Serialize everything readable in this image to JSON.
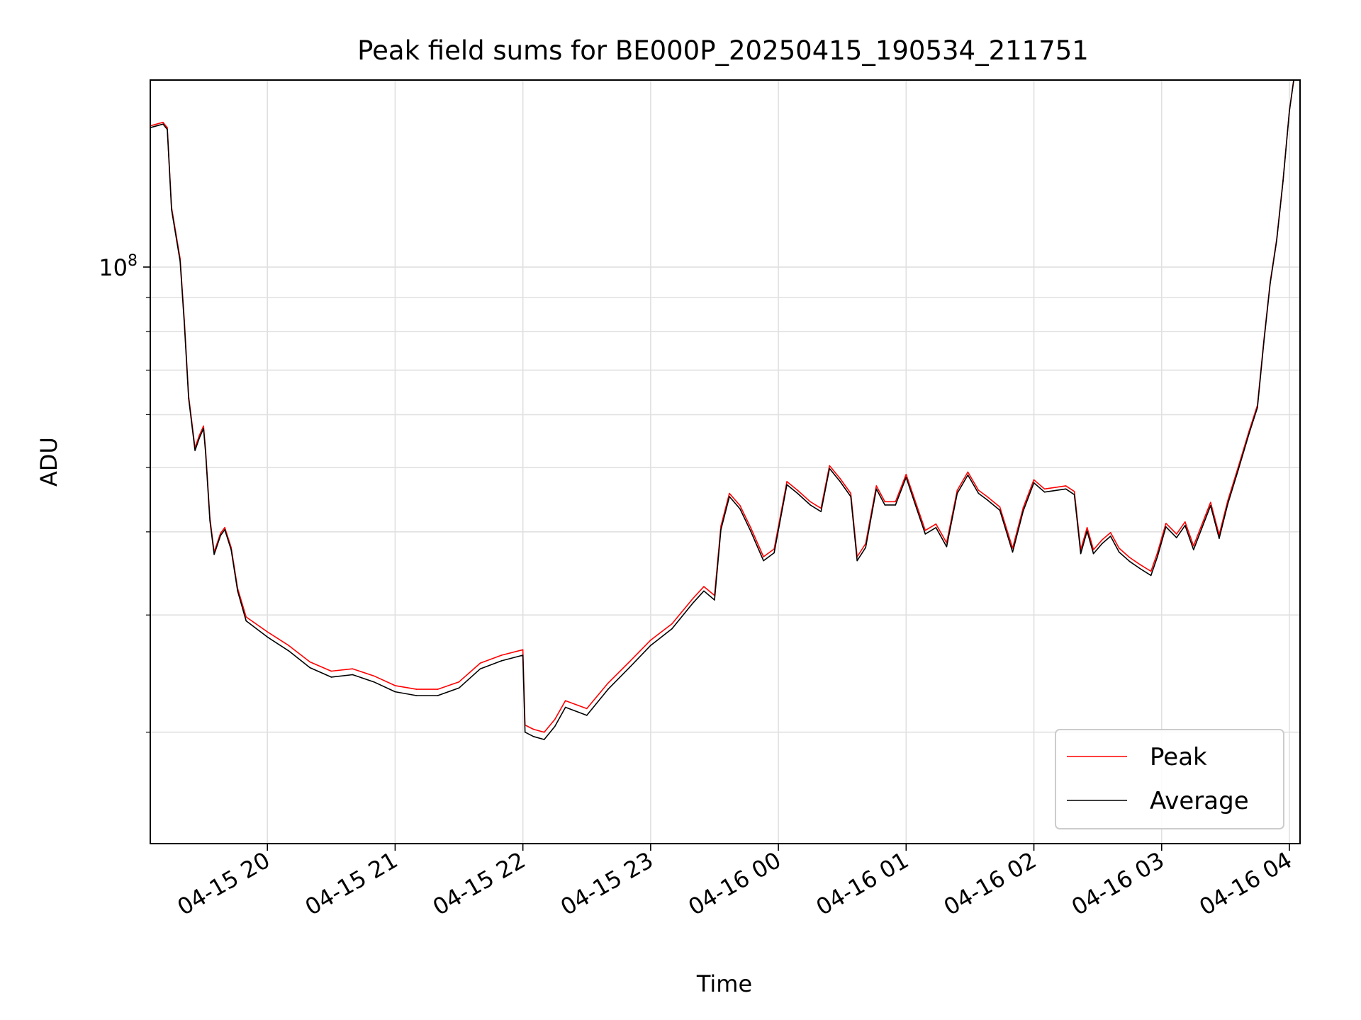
{
  "chart_data": {
    "type": "line",
    "title": "Peak field sums for BE000P_20250415_190534_211751",
    "xlabel": "Time",
    "ylabel": "ADU",
    "yscale": "log",
    "ylim": [
      13600000,
      191000000
    ],
    "xlim": [
      "2025-04-15 19:05",
      "2025-04-16 04:05"
    ],
    "grid": true,
    "legend_position": "lower right",
    "x_ticks": [
      {
        "t": "2025-04-15 20:00",
        "label": "04-15 20"
      },
      {
        "t": "2025-04-15 21:00",
        "label": "04-15 21"
      },
      {
        "t": "2025-04-15 22:00",
        "label": "04-15 22"
      },
      {
        "t": "2025-04-15 23:00",
        "label": "04-15 23"
      },
      {
        "t": "2025-04-16 00:00",
        "label": "04-16 00"
      },
      {
        "t": "2025-04-16 01:00",
        "label": "04-16 01"
      },
      {
        "t": "2025-04-16 02:00",
        "label": "04-16 02"
      },
      {
        "t": "2025-04-16 03:00",
        "label": "04-16 03"
      },
      {
        "t": "2025-04-16 04:00",
        "label": "04-16 04"
      }
    ],
    "y_major_ticks": [
      {
        "value": 100000000,
        "label": "10",
        "exp": "8"
      }
    ],
    "y_minor_ticks": [
      20000000,
      30000000,
      40000000,
      50000000,
      60000000,
      70000000,
      80000000,
      90000000,
      200000000
    ],
    "series": [
      {
        "name": "Peak",
        "color": "#ff0000",
        "points": [
          [
            "2025-04-15 19:05",
            163000000
          ],
          [
            "2025-04-15 19:08",
            164000000
          ],
          [
            "2025-04-15 19:11",
            165000000
          ],
          [
            "2025-04-15 19:13",
            162000000
          ],
          [
            "2025-04-15 19:15",
            123000000
          ],
          [
            "2025-04-15 19:19",
            103000000
          ],
          [
            "2025-04-15 19:21",
            83000000
          ],
          [
            "2025-04-15 19:23",
            64000000
          ],
          [
            "2025-04-15 19:26",
            53500000
          ],
          [
            "2025-04-15 19:28",
            55800000
          ],
          [
            "2025-04-15 19:30",
            57700000
          ],
          [
            "2025-04-15 19:31",
            53000000
          ],
          [
            "2025-04-15 19:33",
            42000000
          ],
          [
            "2025-04-15 19:35",
            37300000
          ],
          [
            "2025-04-15 19:38",
            39800000
          ],
          [
            "2025-04-15 19:40",
            40600000
          ],
          [
            "2025-04-15 19:43",
            37900000
          ],
          [
            "2025-04-15 19:46",
            32900000
          ],
          [
            "2025-04-15 19:50",
            29800000
          ],
          [
            "2025-04-15 20:00",
            28300000
          ],
          [
            "2025-04-15 20:10",
            27000000
          ],
          [
            "2025-04-15 20:20",
            25500000
          ],
          [
            "2025-04-15 20:30",
            24700000
          ],
          [
            "2025-04-15 20:40",
            24900000
          ],
          [
            "2025-04-15 20:50",
            24300000
          ],
          [
            "2025-04-15 21:00",
            23500000
          ],
          [
            "2025-04-15 21:10",
            23200000
          ],
          [
            "2025-04-15 21:20",
            23200000
          ],
          [
            "2025-04-15 21:30",
            23800000
          ],
          [
            "2025-04-15 21:40",
            25400000
          ],
          [
            "2025-04-15 21:50",
            26100000
          ],
          [
            "2025-04-15 22:00",
            26600000
          ],
          [
            "2025-04-15 22:01",
            20500000
          ],
          [
            "2025-04-15 22:05",
            20200000
          ],
          [
            "2025-04-15 22:10",
            20000000
          ],
          [
            "2025-04-15 22:15",
            20900000
          ],
          [
            "2025-04-15 22:20",
            22300000
          ],
          [
            "2025-04-15 22:30",
            21700000
          ],
          [
            "2025-04-15 22:40",
            23700000
          ],
          [
            "2025-04-15 22:50",
            25500000
          ],
          [
            "2025-04-15 23:00",
            27500000
          ],
          [
            "2025-04-15 23:10",
            29100000
          ],
          [
            "2025-04-15 23:20",
            31800000
          ],
          [
            "2025-04-15 23:25",
            33100000
          ],
          [
            "2025-04-15 23:30",
            32100000
          ],
          [
            "2025-04-15 23:33",
            40800000
          ],
          [
            "2025-04-15 23:37",
            45700000
          ],
          [
            "2025-04-15 23:42",
            43800000
          ],
          [
            "2025-04-15 23:47",
            40600000
          ],
          [
            "2025-04-15 23:53",
            36700000
          ],
          [
            "2025-04-15 23:58",
            37700000
          ],
          [
            "2025-04-16 00:04",
            47600000
          ],
          [
            "2025-04-16 00:09",
            46200000
          ],
          [
            "2025-04-16 00:15",
            44400000
          ],
          [
            "2025-04-16 00:20",
            43400000
          ],
          [
            "2025-04-16 00:24",
            50300000
          ],
          [
            "2025-04-16 00:29",
            48100000
          ],
          [
            "2025-04-16 00:34",
            45700000
          ],
          [
            "2025-04-16 00:37",
            36700000
          ],
          [
            "2025-04-16 00:41",
            38400000
          ],
          [
            "2025-04-16 00:46",
            46900000
          ],
          [
            "2025-04-16 00:50",
            44400000
          ],
          [
            "2025-04-16 00:55",
            44400000
          ],
          [
            "2025-04-16 01:00",
            48800000
          ],
          [
            "2025-04-16 01:05",
            43800000
          ],
          [
            "2025-04-16 01:09",
            40200000
          ],
          [
            "2025-04-16 01:14",
            41100000
          ],
          [
            "2025-04-16 01:19",
            38500000
          ],
          [
            "2025-04-16 01:24",
            46200000
          ],
          [
            "2025-04-16 01:29",
            49200000
          ],
          [
            "2025-04-16 01:34",
            46200000
          ],
          [
            "2025-04-16 01:38",
            45200000
          ],
          [
            "2025-04-16 01:44",
            43600000
          ],
          [
            "2025-04-16 01:50",
            37800000
          ],
          [
            "2025-04-16 01:55",
            43500000
          ],
          [
            "2025-04-16 02:00",
            47900000
          ],
          [
            "2025-04-16 02:05",
            46400000
          ],
          [
            "2025-04-16 02:15",
            46900000
          ],
          [
            "2025-04-16 02:19",
            46000000
          ],
          [
            "2025-04-16 02:22",
            37600000
          ],
          [
            "2025-04-16 02:25",
            40600000
          ],
          [
            "2025-04-16 02:28",
            37600000
          ],
          [
            "2025-04-16 02:32",
            38900000
          ],
          [
            "2025-04-16 02:36",
            39900000
          ],
          [
            "2025-04-16 02:40",
            37800000
          ],
          [
            "2025-04-16 02:45",
            36600000
          ],
          [
            "2025-04-16 02:50",
            35700000
          ],
          [
            "2025-04-16 02:55",
            34900000
          ],
          [
            "2025-04-16 02:58",
            37200000
          ],
          [
            "2025-04-16 03:02",
            41200000
          ],
          [
            "2025-04-16 03:07",
            39700000
          ],
          [
            "2025-04-16 03:11",
            41400000
          ],
          [
            "2025-04-16 03:15",
            38100000
          ],
          [
            "2025-04-16 03:19",
            41100000
          ],
          [
            "2025-04-16 03:23",
            44300000
          ],
          [
            "2025-04-16 03:27",
            39600000
          ],
          [
            "2025-04-16 03:31",
            44500000
          ],
          [
            "2025-04-16 03:36",
            50100000
          ],
          [
            "2025-04-16 03:41",
            56600000
          ],
          [
            "2025-04-16 03:45",
            62000000
          ],
          [
            "2025-04-16 03:48",
            77500000
          ],
          [
            "2025-04-16 03:51",
            95000000
          ],
          [
            "2025-04-16 03:54",
            110000000
          ],
          [
            "2025-04-16 03:57",
            135000000
          ],
          [
            "2025-04-16 04:00",
            172000000
          ],
          [
            "2025-04-16 04:02",
            191000000
          ]
        ]
      },
      {
        "name": "Average",
        "color": "#000000",
        "points": [
          [
            "2025-04-15 19:05",
            162000000
          ],
          [
            "2025-04-15 19:08",
            163000000
          ],
          [
            "2025-04-15 19:11",
            164000000
          ],
          [
            "2025-04-15 19:13",
            161000000
          ],
          [
            "2025-04-15 19:15",
            122000000
          ],
          [
            "2025-04-15 19:19",
            102000000
          ],
          [
            "2025-04-15 19:21",
            82000000
          ],
          [
            "2025-04-15 19:23",
            63500000
          ],
          [
            "2025-04-15 19:26",
            53000000
          ],
          [
            "2025-04-15 19:28",
            55300000
          ],
          [
            "2025-04-15 19:30",
            57200000
          ],
          [
            "2025-04-15 19:31",
            52500000
          ],
          [
            "2025-04-15 19:33",
            41600000
          ],
          [
            "2025-04-15 19:35",
            37000000
          ],
          [
            "2025-04-15 19:38",
            39500000
          ],
          [
            "2025-04-15 19:40",
            40300000
          ],
          [
            "2025-04-15 19:43",
            37600000
          ],
          [
            "2025-04-15 19:46",
            32600000
          ],
          [
            "2025-04-15 19:50",
            29400000
          ],
          [
            "2025-04-15 20:00",
            27800000
          ],
          [
            "2025-04-15 20:10",
            26500000
          ],
          [
            "2025-04-15 20:20",
            25000000
          ],
          [
            "2025-04-15 20:30",
            24200000
          ],
          [
            "2025-04-15 20:40",
            24400000
          ],
          [
            "2025-04-15 20:50",
            23800000
          ],
          [
            "2025-04-15 21:00",
            23000000
          ],
          [
            "2025-04-15 21:10",
            22700000
          ],
          [
            "2025-04-15 21:20",
            22700000
          ],
          [
            "2025-04-15 21:30",
            23300000
          ],
          [
            "2025-04-15 21:40",
            24900000
          ],
          [
            "2025-04-15 21:50",
            25600000
          ],
          [
            "2025-04-15 22:00",
            26100000
          ],
          [
            "2025-04-15 22:01",
            20000000
          ],
          [
            "2025-04-15 22:05",
            19700000
          ],
          [
            "2025-04-15 22:10",
            19500000
          ],
          [
            "2025-04-15 22:15",
            20400000
          ],
          [
            "2025-04-15 22:20",
            21800000
          ],
          [
            "2025-04-15 22:30",
            21200000
          ],
          [
            "2025-04-15 22:40",
            23200000
          ],
          [
            "2025-04-15 22:50",
            25000000
          ],
          [
            "2025-04-15 23:00",
            27000000
          ],
          [
            "2025-04-15 23:10",
            28600000
          ],
          [
            "2025-04-15 23:20",
            31300000
          ],
          [
            "2025-04-15 23:25",
            32600000
          ],
          [
            "2025-04-15 23:30",
            31600000
          ],
          [
            "2025-04-15 23:33",
            40300000
          ],
          [
            "2025-04-15 23:37",
            45200000
          ],
          [
            "2025-04-15 23:42",
            43300000
          ],
          [
            "2025-04-15 23:47",
            40100000
          ],
          [
            "2025-04-15 23:53",
            36200000
          ],
          [
            "2025-04-15 23:58",
            37200000
          ],
          [
            "2025-04-16 00:04",
            47100000
          ],
          [
            "2025-04-16 00:09",
            45700000
          ],
          [
            "2025-04-16 00:15",
            43900000
          ],
          [
            "2025-04-16 00:20",
            42900000
          ],
          [
            "2025-04-16 00:24",
            49800000
          ],
          [
            "2025-04-16 00:29",
            47600000
          ],
          [
            "2025-04-16 00:34",
            45200000
          ],
          [
            "2025-04-16 00:37",
            36200000
          ],
          [
            "2025-04-16 00:41",
            37900000
          ],
          [
            "2025-04-16 00:46",
            46400000
          ],
          [
            "2025-04-16 00:50",
            43900000
          ],
          [
            "2025-04-16 00:55",
            43900000
          ],
          [
            "2025-04-16 01:00",
            48300000
          ],
          [
            "2025-04-16 01:05",
            43300000
          ],
          [
            "2025-04-16 01:09",
            39700000
          ],
          [
            "2025-04-16 01:14",
            40600000
          ],
          [
            "2025-04-16 01:19",
            38000000
          ],
          [
            "2025-04-16 01:24",
            45700000
          ],
          [
            "2025-04-16 01:29",
            48700000
          ],
          [
            "2025-04-16 01:34",
            45700000
          ],
          [
            "2025-04-16 01:38",
            44700000
          ],
          [
            "2025-04-16 01:44",
            43100000
          ],
          [
            "2025-04-16 01:50",
            37300000
          ],
          [
            "2025-04-16 01:55",
            43000000
          ],
          [
            "2025-04-16 02:00",
            47400000
          ],
          [
            "2025-04-16 02:05",
            45900000
          ],
          [
            "2025-04-16 02:15",
            46400000
          ],
          [
            "2025-04-16 02:19",
            45500000
          ],
          [
            "2025-04-16 02:22",
            37100000
          ],
          [
            "2025-04-16 02:25",
            40100000
          ],
          [
            "2025-04-16 02:28",
            37100000
          ],
          [
            "2025-04-16 02:32",
            38400000
          ],
          [
            "2025-04-16 02:36",
            39400000
          ],
          [
            "2025-04-16 02:40",
            37300000
          ],
          [
            "2025-04-16 02:45",
            36100000
          ],
          [
            "2025-04-16 02:50",
            35200000
          ],
          [
            "2025-04-16 02:55",
            34400000
          ],
          [
            "2025-04-16 02:58",
            36700000
          ],
          [
            "2025-04-16 03:02",
            40700000
          ],
          [
            "2025-04-16 03:07",
            39200000
          ],
          [
            "2025-04-16 03:11",
            40900000
          ],
          [
            "2025-04-16 03:15",
            37600000
          ],
          [
            "2025-04-16 03:19",
            40600000
          ],
          [
            "2025-04-16 03:23",
            43800000
          ],
          [
            "2025-04-16 03:27",
            39100000
          ],
          [
            "2025-04-16 03:31",
            44000000
          ],
          [
            "2025-04-16 03:36",
            49600000
          ],
          [
            "2025-04-16 03:41",
            56100000
          ],
          [
            "2025-04-16 03:45",
            61500000
          ],
          [
            "2025-04-16 03:48",
            77000000
          ],
          [
            "2025-04-16 03:51",
            94500000
          ],
          [
            "2025-04-16 03:54",
            109500000
          ],
          [
            "2025-04-16 03:57",
            134500000
          ],
          [
            "2025-04-16 04:00",
            171500000
          ],
          [
            "2025-04-16 04:02",
            190500000
          ]
        ]
      }
    ]
  }
}
